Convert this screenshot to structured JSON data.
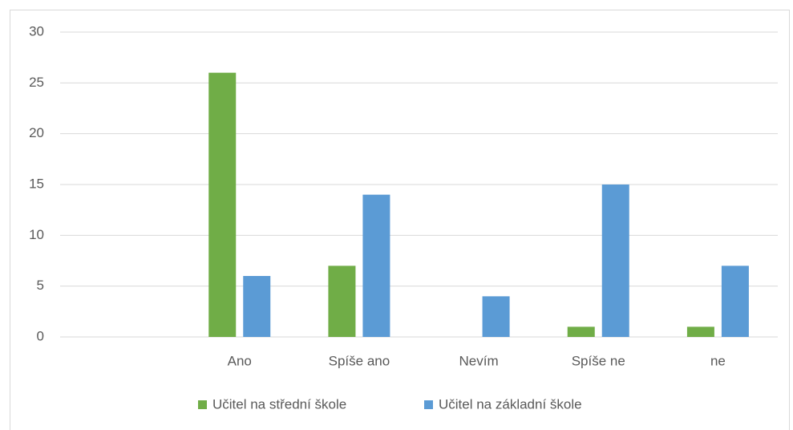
{
  "chart_data": {
    "type": "bar",
    "categories": [
      null,
      "Ano",
      "Spíše ano",
      "Nevím",
      "Spíše ne",
      "ne"
    ],
    "series": [
      {
        "name": "Učitel na střední škole",
        "color": "#70ad47",
        "values": [
          null,
          26,
          7,
          0,
          1,
          1
        ]
      },
      {
        "name": "Učitel na základní škole",
        "color": "#5b9bd5",
        "values": [
          null,
          6,
          14,
          4,
          15,
          7
        ]
      }
    ],
    "ylim": [
      0,
      30
    ],
    "yticks": [
      0,
      5,
      10,
      15,
      20,
      25,
      30
    ],
    "grid": true,
    "legend": "bottom"
  }
}
